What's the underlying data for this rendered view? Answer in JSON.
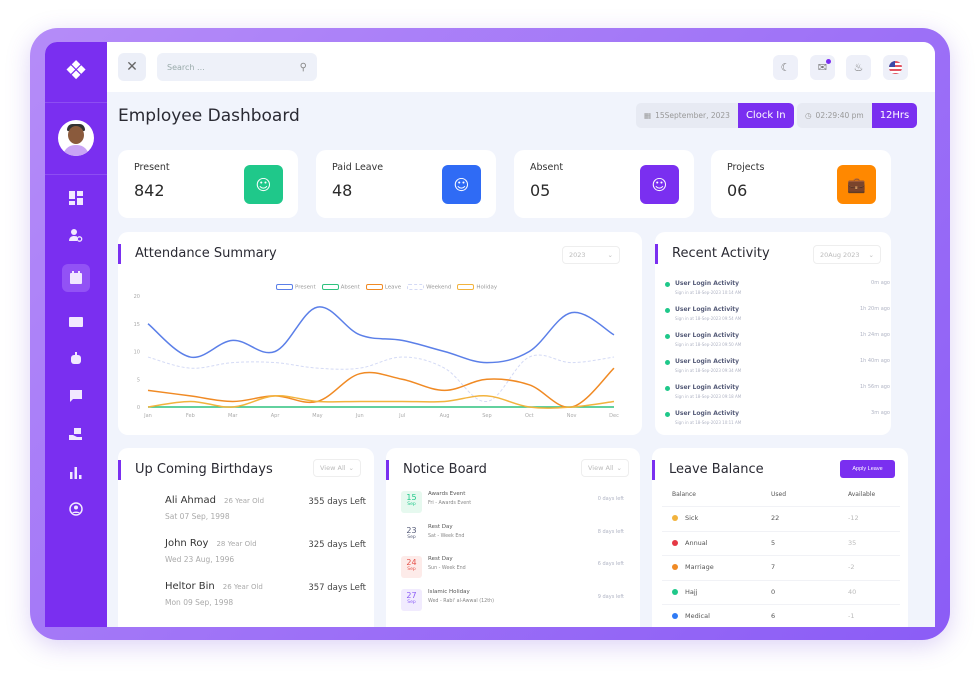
{
  "colors": {
    "brand": "#7a2ff0",
    "present": "#1fc88a",
    "paid_leave": "#2f6bf5",
    "absent": "#7a2ff0",
    "projects": "#ff8800"
  },
  "topbar": {
    "search_placeholder": "Search ...",
    "icons": [
      "moon-icon",
      "mail-icon",
      "bell-icon",
      "us-flag-icon"
    ]
  },
  "header": {
    "title": "Employee Dashboard",
    "date": "15September, 2023",
    "clock_in": "Clock In",
    "time": "02:29:40 pm",
    "hours": "12Hrs"
  },
  "stats": [
    {
      "label": "Present",
      "value": "842",
      "icon": "user-icon"
    },
    {
      "label": "Paid Leave",
      "value": "48",
      "icon": "user-icon"
    },
    {
      "label": "Absent",
      "value": "05",
      "icon": "user-icon"
    },
    {
      "label": "Projects",
      "value": "06",
      "icon": "briefcase-icon"
    }
  ],
  "attendance": {
    "title": "Attendance Summary",
    "year": "2023"
  },
  "chart_data": {
    "type": "line",
    "title": "",
    "xlabel": "",
    "ylabel": "",
    "ylim": [
      0,
      20
    ],
    "grid": false,
    "legend": "top",
    "yticks": [
      "0",
      "5",
      "10",
      "15",
      "20"
    ],
    "categories": [
      "Jan",
      "Feb",
      "Mar",
      "Apr",
      "May",
      "Jun",
      "Jul",
      "Aug",
      "Sep",
      "Oct",
      "Nov",
      "Dec"
    ],
    "series": [
      {
        "name": "Present",
        "color": "#5b7fe8",
        "values": [
          15,
          9,
          12,
          10,
          18,
          13,
          12,
          10,
          8,
          10,
          17,
          13
        ]
      },
      {
        "name": "Absent",
        "color": "#2ec27e",
        "values": [
          0,
          0,
          0,
          0,
          0,
          0,
          0,
          0,
          0,
          0,
          0,
          0
        ]
      },
      {
        "name": "Leave",
        "color": "#f08a24",
        "values": [
          3,
          2,
          1,
          2,
          1,
          6,
          5,
          3,
          5,
          4,
          0,
          7
        ]
      },
      {
        "name": "Weekend",
        "color": "#d4daf5",
        "dashed": true,
        "values": [
          9,
          7,
          8,
          8,
          7,
          7,
          9,
          7,
          1,
          9,
          8,
          9
        ]
      },
      {
        "name": "Holiday",
        "color": "#f2b33d",
        "values": [
          0,
          1,
          0,
          2,
          1,
          1,
          1,
          1,
          2,
          0,
          0,
          1
        ]
      }
    ]
  },
  "activity": {
    "title": "Recent Activity",
    "date": "20Aug 2023",
    "items": [
      {
        "title": "User Login Activity",
        "sub": "Sign in at 18-Sep-2023 10:14 AM",
        "ago": "0m ago"
      },
      {
        "title": "User Login Activity",
        "sub": "Sign in at 18-Sep-2023 09:54 AM",
        "ago": "1h 20m ago"
      },
      {
        "title": "User Login Activity",
        "sub": "Sign in at 18-Sep-2023 09:50 AM",
        "ago": "1h 24m ago"
      },
      {
        "title": "User Login Activity",
        "sub": "Sign in at 18-Sep-2023 09:34 AM",
        "ago": "1h 40m ago"
      },
      {
        "title": "User Login Activity",
        "sub": "Sign in at 18-Sep-2023 09:18 AM",
        "ago": "1h 56m ago"
      },
      {
        "title": "User Login Activity",
        "sub": "Sign in at 18-Sep-2023 10:11 AM",
        "ago": "3m ago"
      }
    ]
  },
  "birthdays": {
    "title": "Up Coming Birthdays",
    "view_all": "View All",
    "items": [
      {
        "name": "Ali Ahmad",
        "age": "26 Year Old",
        "date": "Sat 07 Sep, 1998",
        "left": "355 days Left"
      },
      {
        "name": "John Roy",
        "age": "28 Year Old",
        "date": "Wed 23 Aug, 1996",
        "left": "325 days Left"
      },
      {
        "name": "Heltor Bin",
        "age": "26 Year Old",
        "date": "Mon 09 Sep, 1998",
        "left": "357 days Left"
      }
    ]
  },
  "notice": {
    "title": "Notice Board",
    "view_all": "View All",
    "items": [
      {
        "day": "15",
        "month": "Sep",
        "title": "Awards Event",
        "sub": "Fri - Awards Event",
        "left": "0 days left",
        "bg": "#e6f9ef",
        "fg": "#1fc88a"
      },
      {
        "day": "23",
        "month": "Sep",
        "title": "Rest Day",
        "sub": "Sat - Week End",
        "left": "8 days left",
        "bg": "#ffffff",
        "fg": "#555b78"
      },
      {
        "day": "24",
        "month": "Sep",
        "title": "Rest Day",
        "sub": "Sun - Week End",
        "left": "6 days left",
        "bg": "#fdebe9",
        "fg": "#e5534b"
      },
      {
        "day": "27",
        "month": "Sep",
        "title": "Islamic Holiday",
        "sub": "Wed - Rabi' al-Awwal (12th)",
        "left": "9 days left",
        "bg": "#f1ebfe",
        "fg": "#8b5cf6"
      }
    ]
  },
  "leave": {
    "title": "Leave Balance",
    "apply": "Apply Leave",
    "headers": [
      "Balance",
      "Used",
      "Available"
    ],
    "rows": [
      {
        "name": "Sick",
        "used": "22",
        "available": "-12",
        "color": "#f2b33d"
      },
      {
        "name": "Annual",
        "used": "5",
        "available": "35",
        "color": "#e53945"
      },
      {
        "name": "Marriage",
        "used": "7",
        "available": "-2",
        "color": "#f08a24"
      },
      {
        "name": "Hajj",
        "used": "0",
        "available": "40",
        "color": "#1fc88a"
      },
      {
        "name": "Medical",
        "used": "6",
        "available": "-1",
        "color": "#2f7bf5"
      }
    ]
  }
}
